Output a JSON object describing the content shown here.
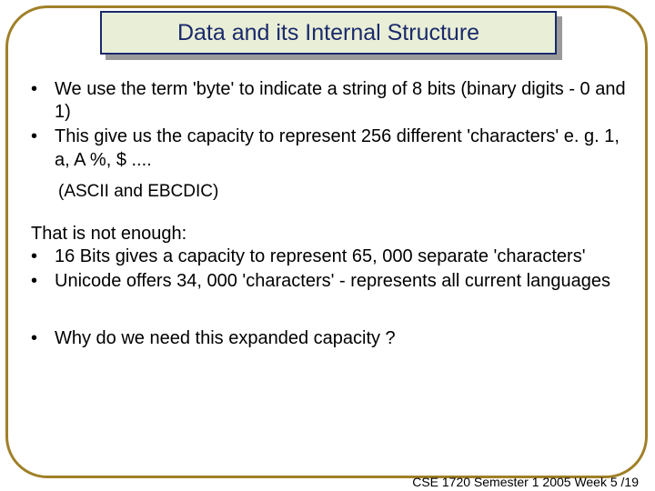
{
  "slide": {
    "title": "Data and its Internal Structure",
    "frame_border_color": "#a08028",
    "title_box_bg": "#e9eed6",
    "title_box_border": "#1a2a6c",
    "title_text_color": "#1a2a6c",
    "title_fontsize": 25,
    "body_fontsize": 20,
    "body_color": "#000000",
    "bullets1": [
      "We use the term 'byte' to indicate a string of 8 bits (binary digits  -   0 and 1)",
      "This give us the capacity to represent 256 different 'characters'  e. g.  1, a, A  %, $ ...."
    ],
    "note1": "(ASCII and EBCDIC)",
    "para2_lead": "That is not enough:",
    "bullets2": [
      " 16 Bits gives a capacity to represent 65, 000 separate 'characters'",
      "Unicode   offers 34, 000 'characters'    -  represents all current languages"
    ],
    "bullets3": [
      "Why do we need this expanded capacity ?"
    ],
    "footer": "CSE 1720  Semester 1 2005  Week 5 /19",
    "footer_fontsize": 14
  }
}
